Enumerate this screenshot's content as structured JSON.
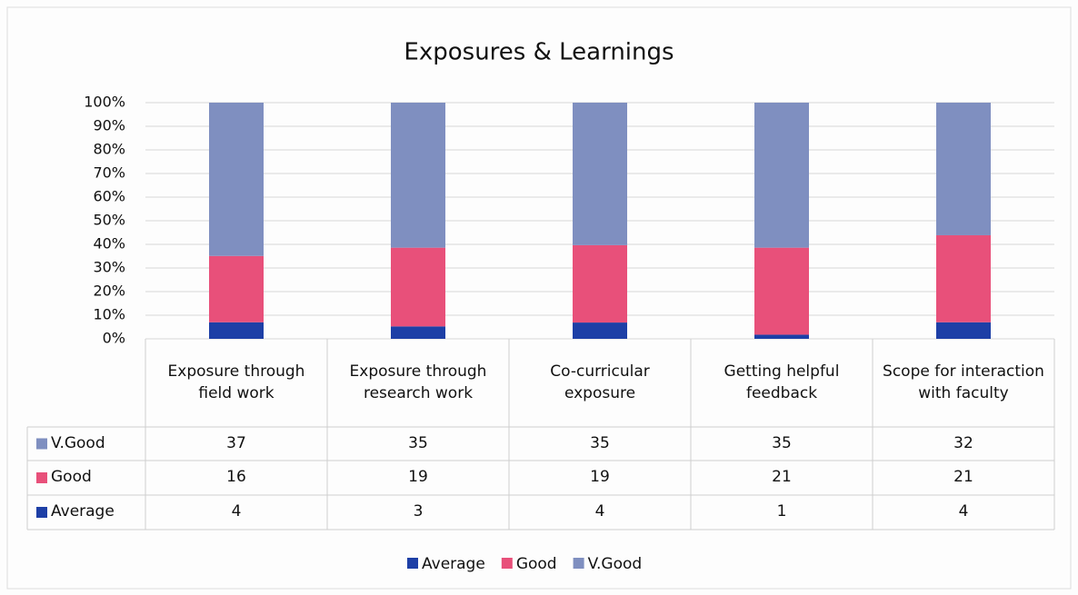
{
  "chart_data": {
    "type": "stacked_bar_100",
    "title": "Exposures & Learnings",
    "categories": [
      "Exposure through field work",
      "Exposure through research work",
      "Co-curricular exposure",
      "Getting helpful feedback",
      "Scope for interaction with faculty"
    ],
    "series": [
      {
        "name": "Average",
        "color": "#1d3fa6",
        "values": [
          4,
          3,
          4,
          1,
          4
        ]
      },
      {
        "name": "Good",
        "color": "#e8507a",
        "values": [
          16,
          19,
          19,
          21,
          21
        ]
      },
      {
        "name": "V.Good",
        "color": "#7f8fc0",
        "values": [
          37,
          35,
          35,
          35,
          32
        ]
      }
    ],
    "ylim": [
      0,
      100
    ],
    "yticks": [
      {
        "value": 0,
        "label": "0%"
      },
      {
        "value": 10,
        "label": "10%"
      },
      {
        "value": 20,
        "label": "20%"
      },
      {
        "value": 30,
        "label": "30%"
      },
      {
        "value": 40,
        "label": "40%"
      },
      {
        "value": 50,
        "label": "50%"
      },
      {
        "value": 60,
        "label": "60%"
      },
      {
        "value": 70,
        "label": "70%"
      },
      {
        "value": 80,
        "label": "80%"
      },
      {
        "value": 90,
        "label": "90%"
      },
      {
        "value": 100,
        "label": "100%"
      }
    ],
    "grid": true
  }
}
